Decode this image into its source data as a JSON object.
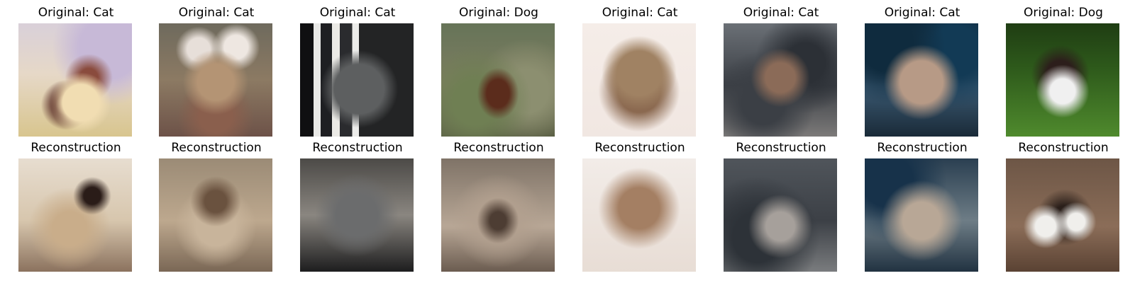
{
  "rows": [
    {
      "row": "top",
      "titles": [
        "Original: Cat",
        "Original: Cat",
        "Original: Cat",
        "Original: Dog",
        "Original: Cat",
        "Original: Cat",
        "Original: Cat",
        "Original: Dog"
      ]
    },
    {
      "row": "bottom",
      "titles": [
        "Reconstruction",
        "Reconstruction",
        "Reconstruction",
        "Reconstruction",
        "Reconstruction",
        "Reconstruction",
        "Reconstruction",
        "Reconstruction"
      ]
    }
  ]
}
